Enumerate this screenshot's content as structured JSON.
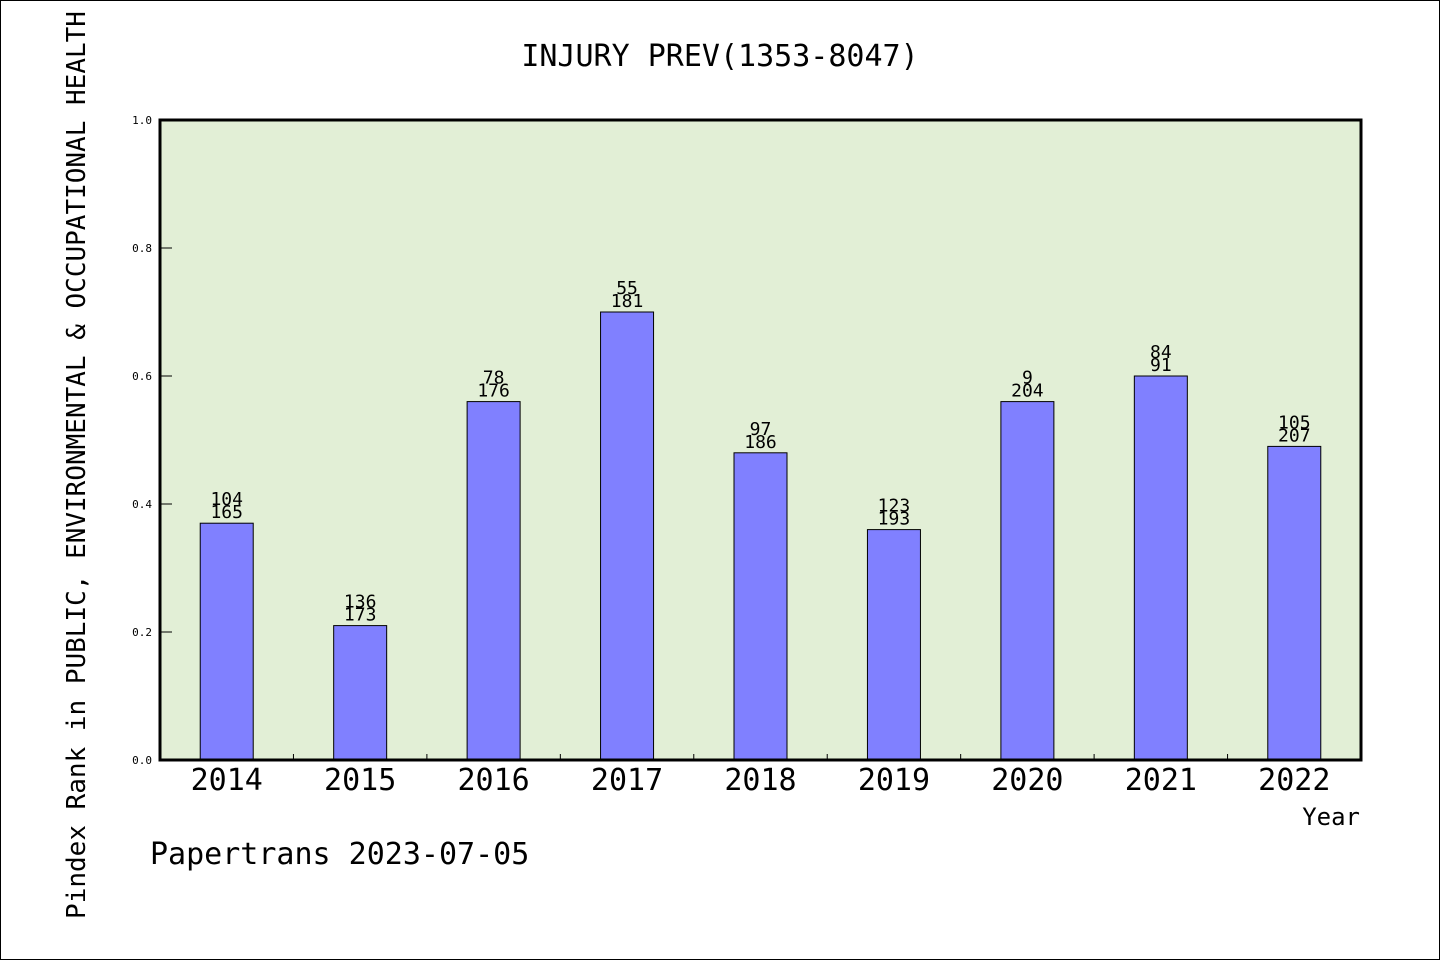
{
  "chart_data": {
    "type": "bar",
    "title": "INJURY PREV(1353-8047)",
    "xlabel": "Year",
    "ylabel": "Pindex Rank in PUBLIC, ENVIRONMENTAL & OCCUPATIONAL HEALTH",
    "categories": [
      "2014",
      "2015",
      "2016",
      "2017",
      "2018",
      "2019",
      "2020",
      "2021",
      "2022"
    ],
    "values": [
      0.37,
      0.21,
      0.56,
      0.7,
      0.48,
      0.36,
      0.56,
      0.6,
      0.49
    ],
    "labels_top": [
      "104",
      "136",
      "78",
      "55",
      "97",
      "123",
      "9",
      "84",
      "105"
    ],
    "labels_bottom": [
      "165",
      "173",
      "176",
      "181",
      "186",
      "193",
      "204",
      "91",
      "207"
    ],
    "ylim": [
      0,
      1.0
    ],
    "yticks": [
      "0.0",
      "0.2",
      "0.4",
      "0.6",
      "0.8",
      "1.0"
    ],
    "grid": false,
    "colors": {
      "plot_bg": "#e2efd6",
      "bar": "#8080ff",
      "bar_edge": "#000000"
    }
  },
  "footer": "Papertrans 2023-07-05"
}
